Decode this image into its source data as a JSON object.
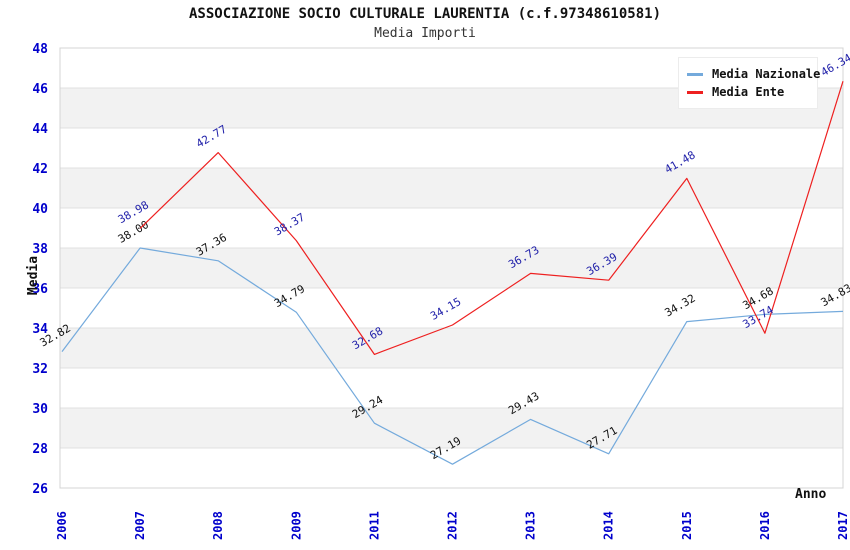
{
  "header": {
    "title": "ASSOCIAZIONE SOCIO CULTURALE LAURENTIA (c.f.97348610581)",
    "subtitle": "Media Importi"
  },
  "axes": {
    "y_label": "Media",
    "x_label": "Anno",
    "y_ticks": [
      48,
      46,
      44,
      42,
      40,
      38,
      36,
      34,
      32,
      30,
      28,
      26
    ],
    "tick_color": "#0000CC",
    "band_color": "#F2F2F2",
    "grid_color": "#E0E0E0",
    "border_color": "#D4D4D4"
  },
  "legend": {
    "items": [
      {
        "label": "Media Nazionale"
      },
      {
        "label": "Media Ente"
      }
    ]
  },
  "chart_data": {
    "type": "line",
    "title": "ASSOCIAZIONE SOCIO CULTURALE LAURENTIA (c.f.97348610581)",
    "subtitle": "Media Importi",
    "xlabel": "Anno",
    "ylabel": "Media",
    "ylim": [
      26,
      48
    ],
    "y_tick_step": 2,
    "grid": "horizontal-bands",
    "legend_position": "top-right",
    "categories": [
      "2006",
      "2007",
      "2008",
      "2009",
      "2011",
      "2012",
      "2013",
      "2014",
      "2015",
      "2016",
      "2017"
    ],
    "series": [
      {
        "name": "Media Nazionale",
        "color": "#74AADC",
        "label_color": "#111111",
        "values": [
          32.82,
          38.0,
          37.36,
          34.79,
          29.24,
          27.19,
          29.43,
          27.71,
          34.32,
          34.68,
          34.83
        ]
      },
      {
        "name": "Media Ente",
        "color": "#EE2020",
        "label_color": "#2222AA",
        "values": [
          null,
          38.98,
          42.77,
          38.37,
          32.68,
          34.15,
          36.73,
          36.39,
          41.48,
          33.74,
          46.34
        ]
      }
    ]
  }
}
